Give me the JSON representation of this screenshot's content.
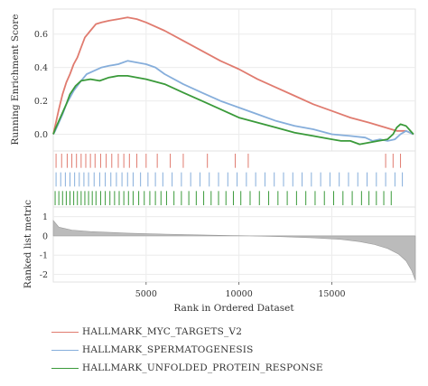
{
  "chart_data": {
    "type": "line",
    "panels": [
      {
        "name": "enrichment",
        "ylabel": "Running Enrichment Score",
        "ylim": [
          -0.1,
          0.75
        ],
        "yticks": [
          "0.0",
          "0.2",
          "0.4",
          "0.6"
        ]
      },
      {
        "name": "hits"
      },
      {
        "name": "ranked",
        "ylabel": "Ranked list metric",
        "ylim": [
          -2.4,
          1.5
        ],
        "yticks": [
          "1",
          "0",
          "-1",
          "-2"
        ]
      }
    ],
    "xlabel": "Rank in Ordered Dataset",
    "xlim": [
      0,
      19500
    ],
    "xticks": [
      "5000",
      "10000",
      "15000"
    ],
    "grid": true,
    "series": [
      {
        "name": "HALLMARK_MYC_TARGETS_V2",
        "color": "#E07B6F",
        "x": [
          0,
          100,
          300,
          500,
          700,
          900,
          1100,
          1300,
          1500,
          1700,
          2000,
          2300,
          2600,
          3000,
          3500,
          4000,
          4500,
          5000,
          6000,
          7000,
          8000,
          9000,
          10000,
          11000,
          12000,
          13000,
          14000,
          15000,
          16000,
          17000,
          17900,
          18200,
          18500,
          18700,
          19000,
          19400
        ],
        "values": [
          0.0,
          0.05,
          0.15,
          0.24,
          0.31,
          0.36,
          0.42,
          0.46,
          0.52,
          0.58,
          0.62,
          0.66,
          0.67,
          0.68,
          0.69,
          0.7,
          0.69,
          0.67,
          0.62,
          0.56,
          0.5,
          0.44,
          0.39,
          0.33,
          0.28,
          0.23,
          0.18,
          0.14,
          0.1,
          0.07,
          0.04,
          0.03,
          0.02,
          0.02,
          0.02,
          0.0
        ]
      },
      {
        "name": "HALLMARK_SPERMATOGENESIS",
        "color": "#86AEDB",
        "x": [
          0,
          100,
          300,
          500,
          700,
          900,
          1100,
          1300,
          1500,
          1800,
          2200,
          2600,
          3000,
          3500,
          4000,
          4500,
          5000,
          5500,
          6000,
          7000,
          8000,
          9000,
          10000,
          11000,
          12000,
          13000,
          14000,
          15000,
          16000,
          16800,
          17200,
          17600,
          18000,
          18400,
          18700,
          19000,
          19400
        ],
        "values": [
          0.0,
          0.02,
          0.07,
          0.12,
          0.18,
          0.22,
          0.26,
          0.29,
          0.32,
          0.36,
          0.38,
          0.4,
          0.41,
          0.42,
          0.44,
          0.43,
          0.42,
          0.4,
          0.36,
          0.3,
          0.25,
          0.2,
          0.16,
          0.12,
          0.08,
          0.05,
          0.03,
          0.0,
          -0.01,
          -0.02,
          -0.04,
          -0.03,
          -0.04,
          -0.03,
          0.0,
          0.02,
          0.0
        ]
      },
      {
        "name": "HALLMARK_UNFOLDED_PROTEIN_RESPONSE",
        "color": "#3A9A3A",
        "x": [
          0,
          100,
          300,
          500,
          700,
          900,
          1200,
          1500,
          2000,
          2500,
          3000,
          3500,
          4000,
          4500,
          5000,
          6000,
          7000,
          8000,
          9000,
          10000,
          11000,
          12000,
          13000,
          14000,
          15000,
          15500,
          16000,
          16500,
          17000,
          17500,
          18000,
          18300,
          18500,
          18700,
          19000,
          19400
        ],
        "values": [
          0.0,
          0.03,
          0.08,
          0.13,
          0.18,
          0.24,
          0.29,
          0.32,
          0.33,
          0.32,
          0.34,
          0.35,
          0.35,
          0.34,
          0.33,
          0.3,
          0.25,
          0.2,
          0.15,
          0.1,
          0.07,
          0.04,
          0.01,
          -0.01,
          -0.03,
          -0.04,
          -0.04,
          -0.06,
          -0.05,
          -0.04,
          -0.03,
          0.0,
          0.04,
          0.06,
          0.05,
          0.0
        ]
      }
    ],
    "hits": [
      {
        "series": "HALLMARK_MYC_TARGETS_V2",
        "color": "#E07B6F",
        "x": [
          150,
          450,
          750,
          1000,
          1250,
          1500,
          1750,
          2000,
          2250,
          2550,
          2850,
          3150,
          3500,
          3800,
          4100,
          4500,
          5000,
          5600,
          6300,
          7000,
          8300,
          9800,
          10500,
          17900,
          18300,
          18700
        ]
      },
      {
        "series": "HALLMARK_SPERMATOGENESIS",
        "color": "#86AEDB",
        "x": [
          150,
          400,
          650,
          900,
          1150,
          1400,
          1650,
          1900,
          2200,
          2500,
          2800,
          3100,
          3400,
          3700,
          4000,
          4300,
          4700,
          5100,
          5500,
          5900,
          6400,
          6900,
          7400,
          7900,
          8400,
          8900,
          9400,
          9900,
          10400,
          10900,
          11400,
          11900,
          12400,
          12900,
          13400,
          13900,
          14400,
          14900,
          15400,
          15900,
          16400,
          16900,
          17400,
          17900,
          18400,
          18800
        ]
      },
      {
        "series": "HALLMARK_UNFOLDED_PROTEIN_RESPONSE",
        "color": "#3A9A3A",
        "x": [
          100,
          300,
          500,
          700,
          900,
          1100,
          1300,
          1500,
          1700,
          1900,
          2100,
          2300,
          2550,
          2800,
          3050,
          3300,
          3550,
          3800,
          4050,
          4300,
          4600,
          4900,
          5200,
          5500,
          5800,
          6100,
          6500,
          6900,
          7300,
          7700,
          8100,
          8500,
          8900,
          9300,
          9700,
          10100,
          10600,
          11100,
          11600,
          12100,
          12600,
          13100,
          13600,
          14100,
          14600,
          15100,
          15600,
          16100,
          16600,
          17000,
          17400,
          17800,
          18200
        ]
      }
    ],
    "ranked_metric": {
      "color": "#BBBBBB",
      "x": [
        0,
        300,
        1000,
        2000,
        4000,
        6000,
        8000,
        10000,
        12000,
        14000,
        15500,
        16500,
        17300,
        18000,
        18600,
        19000,
        19300,
        19500
      ],
      "values": [
        0.8,
        0.45,
        0.3,
        0.22,
        0.14,
        0.09,
        0.05,
        0.01,
        -0.03,
        -0.1,
        -0.18,
        -0.3,
        -0.45,
        -0.65,
        -0.95,
        -1.3,
        -1.8,
        -2.3
      ]
    }
  }
}
